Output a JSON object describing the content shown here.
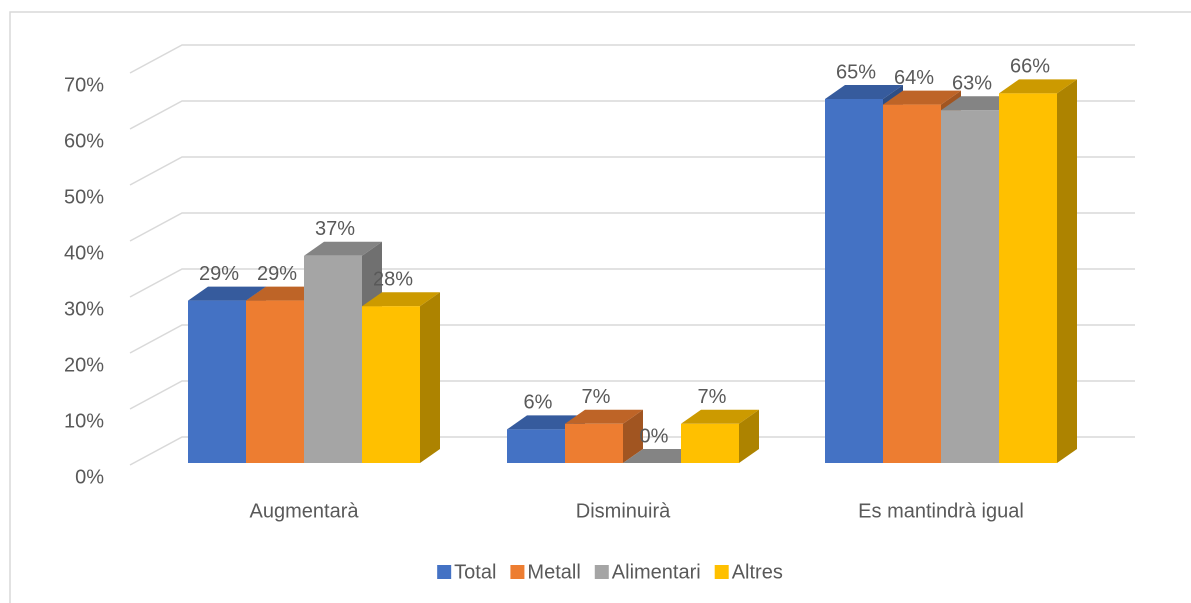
{
  "chart_data": {
    "type": "bar3d",
    "categories": [
      "Augmentarà",
      "Disminuirà",
      "Es mantindrà igual"
    ],
    "series": [
      {
        "name": "Total",
        "color": "#4472c4",
        "values": [
          29,
          6,
          65
        ],
        "value_labels": [
          "29%",
          "6%",
          "65%"
        ]
      },
      {
        "name": "Metall",
        "color": "#ed7d31",
        "values": [
          29,
          7,
          64
        ],
        "value_labels": [
          "29%",
          "7%",
          "64%"
        ]
      },
      {
        "name": "Alimentari",
        "color": "#a5a5a5",
        "values": [
          37,
          0,
          63
        ],
        "value_labels": [
          "37%",
          "0%",
          "63%"
        ]
      },
      {
        "name": "Altres",
        "color": "#ffc000",
        "values": [
          28,
          7,
          66
        ],
        "value_labels": [
          "28%",
          "7%",
          "66%"
        ]
      }
    ],
    "ylim": [
      0,
      70
    ],
    "yticks": [
      {
        "value": 0,
        "label": "0%"
      },
      {
        "value": 10,
        "label": "10%"
      },
      {
        "value": 20,
        "label": "20%"
      },
      {
        "value": 30,
        "label": "30%"
      },
      {
        "value": 40,
        "label": "40%"
      },
      {
        "value": 50,
        "label": "50%"
      },
      {
        "value": 60,
        "label": "60%"
      },
      {
        "value": 70,
        "label": "70%"
      }
    ],
    "grid": true,
    "legend": "bottom"
  }
}
